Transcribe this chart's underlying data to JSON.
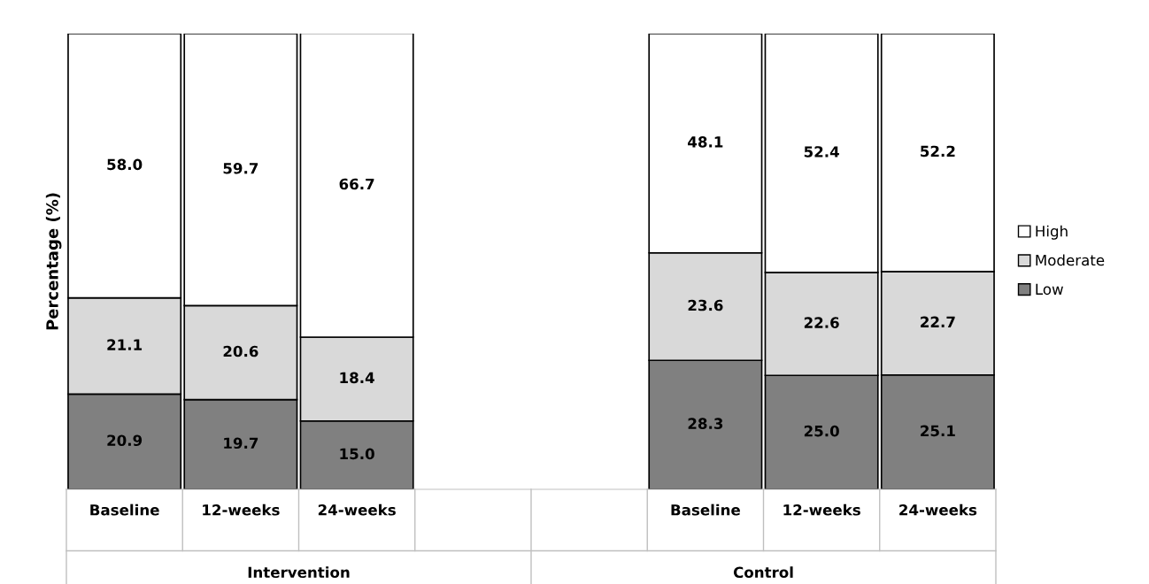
{
  "chart_data": {
    "type": "bar",
    "stacked": true,
    "ylabel": "Percentage (%)",
    "categories": [
      "Baseline",
      "12-weeks",
      "24-weeks",
      null,
      null,
      "Baseline",
      "12-weeks",
      "24-weeks"
    ],
    "series": [
      {
        "name": "Low",
        "color": "#808080",
        "values": [
          20.9,
          19.7,
          15.0,
          null,
          null,
          28.3,
          25.0,
          25.1
        ],
        "value_labels": [
          "20.9",
          "19.7",
          "15.0",
          null,
          null,
          "28.3",
          "25.0",
          "25.1"
        ]
      },
      {
        "name": "Moderate",
        "color": "#d9d9d9",
        "values": [
          21.1,
          20.6,
          18.4,
          null,
          null,
          23.6,
          22.6,
          22.7
        ],
        "value_labels": [
          "21.1",
          "20.6",
          "18.4",
          null,
          null,
          "23.6",
          "22.6",
          "22.7"
        ]
      },
      {
        "name": "High",
        "color": "#ffffff",
        "values": [
          58.0,
          59.7,
          66.7,
          null,
          null,
          48.1,
          52.4,
          52.2
        ],
        "value_labels": [
          "58.0",
          "59.7",
          "66.7",
          null,
          null,
          "48.1",
          "52.4",
          "52.2"
        ]
      }
    ],
    "ylim": [
      0,
      100
    ],
    "tick_labels": "x",
    "legend": "right",
    "grid": false,
    "annotations": [
      "Intervention",
      "Control"
    ]
  }
}
